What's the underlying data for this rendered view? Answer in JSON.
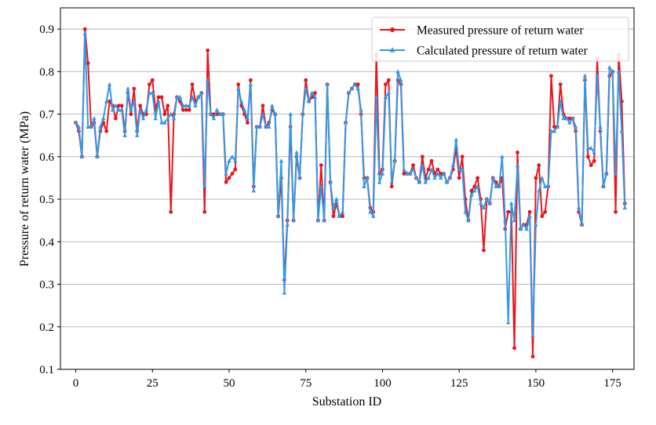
{
  "chart_data": {
    "type": "line",
    "xlabel": "Substation ID",
    "ylabel": "Pressure of return water (MPa)",
    "xlim": [
      -5,
      182
    ],
    "ylim": [
      0.1,
      0.95
    ],
    "xticks": [
      0,
      25,
      50,
      75,
      100,
      125,
      150,
      175
    ],
    "yticks": [
      0.1,
      0.2,
      0.3,
      0.4,
      0.5,
      0.6,
      0.7,
      0.8,
      0.9
    ],
    "grid": "horizontal",
    "legend_position": "top-right",
    "colors": {
      "measured": "#e8151b",
      "calculated": "#3399e6"
    },
    "series": [
      {
        "name": "Measured pressure of return water",
        "marker": "circle",
        "values": [
          0.68,
          0.66,
          0.6,
          0.9,
          0.82,
          0.67,
          0.68,
          0.6,
          0.66,
          0.68,
          0.66,
          0.73,
          0.72,
          0.69,
          0.72,
          0.72,
          0.66,
          0.75,
          0.7,
          0.76,
          0.66,
          0.72,
          0.7,
          0.7,
          0.77,
          0.78,
          0.71,
          0.74,
          0.74,
          0.7,
          0.72,
          0.47,
          0.7,
          0.74,
          0.73,
          0.71,
          0.71,
          0.71,
          0.77,
          0.73,
          0.74,
          0.75,
          0.47,
          0.85,
          0.7,
          0.7,
          0.7,
          0.7,
          0.7,
          0.54,
          0.55,
          0.56,
          0.57,
          0.77,
          0.72,
          0.7,
          0.68,
          0.78,
          0.53,
          0.67,
          0.67,
          0.72,
          0.67,
          0.68,
          0.71,
          0.7,
          0.46,
          0.55,
          0.31,
          0.45,
          0.67,
          0.45,
          0.6,
          0.55,
          0.7,
          0.78,
          0.73,
          0.74,
          0.75,
          0.45,
          0.58,
          0.45,
          0.77,
          0.54,
          0.46,
          0.49,
          0.46,
          0.46,
          0.68,
          0.75,
          0.76,
          0.77,
          0.77,
          0.7,
          0.55,
          0.55,
          0.48,
          0.47,
          0.84,
          0.56,
          0.57,
          0.77,
          0.78,
          0.53,
          0.59,
          0.78,
          0.77,
          0.56,
          0.56,
          0.56,
          0.58,
          0.55,
          0.54,
          0.6,
          0.55,
          0.57,
          0.59,
          0.56,
          0.57,
          0.56,
          0.56,
          0.54,
          0.55,
          0.57,
          0.62,
          0.55,
          0.6,
          0.5,
          0.45,
          0.52,
          0.53,
          0.55,
          0.5,
          0.38,
          0.5,
          0.49,
          0.55,
          0.54,
          0.53,
          0.55,
          0.43,
          0.47,
          0.47,
          0.15,
          0.61,
          0.43,
          0.44,
          0.44,
          0.47,
          0.13,
          0.55,
          0.58,
          0.46,
          0.47,
          0.53,
          0.79,
          0.67,
          0.67,
          0.77,
          0.7,
          0.69,
          0.69,
          0.69,
          0.66,
          0.47,
          0.44,
          0.78,
          0.6,
          0.58,
          0.59,
          0.83,
          0.66,
          0.53,
          0.56,
          0.79,
          0.8,
          0.47,
          0.84,
          0.73,
          0.49
        ]
      },
      {
        "name": "Calculated pressure of return water",
        "marker": "triangle",
        "values": [
          0.68,
          0.67,
          0.6,
          0.89,
          0.67,
          0.67,
          0.69,
          0.6,
          0.67,
          0.69,
          0.73,
          0.77,
          0.71,
          0.72,
          0.71,
          0.71,
          0.65,
          0.76,
          0.71,
          0.73,
          0.65,
          0.71,
          0.69,
          0.71,
          0.75,
          0.75,
          0.69,
          0.73,
          0.68,
          0.68,
          0.69,
          0.7,
          0.69,
          0.74,
          0.74,
          0.72,
          0.72,
          0.72,
          0.74,
          0.72,
          0.74,
          0.75,
          0.53,
          0.78,
          0.7,
          0.69,
          0.71,
          0.7,
          0.7,
          0.56,
          0.59,
          0.6,
          0.59,
          0.76,
          0.73,
          0.71,
          0.69,
          0.77,
          0.52,
          0.67,
          0.67,
          0.7,
          0.67,
          0.67,
          0.72,
          0.7,
          0.46,
          0.59,
          0.28,
          0.44,
          0.7,
          0.45,
          0.61,
          0.55,
          0.7,
          0.76,
          0.73,
          0.75,
          0.74,
          0.45,
          0.53,
          0.45,
          0.77,
          0.54,
          0.48,
          0.5,
          0.46,
          0.47,
          0.68,
          0.75,
          0.76,
          0.77,
          0.76,
          0.71,
          0.53,
          0.55,
          0.47,
          0.46,
          0.74,
          0.54,
          0.56,
          0.74,
          0.75,
          0.54,
          0.59,
          0.8,
          0.78,
          0.57,
          0.56,
          0.56,
          0.57,
          0.55,
          0.54,
          0.58,
          0.54,
          0.55,
          0.57,
          0.55,
          0.56,
          0.55,
          0.56,
          0.54,
          0.55,
          0.58,
          0.64,
          0.57,
          0.57,
          0.47,
          0.45,
          0.51,
          0.52,
          0.53,
          0.49,
          0.48,
          0.5,
          0.49,
          0.55,
          0.53,
          0.53,
          0.6,
          0.45,
          0.21,
          0.49,
          0.45,
          0.58,
          0.43,
          0.44,
          0.43,
          0.46,
          0.18,
          0.44,
          0.52,
          0.55,
          0.53,
          0.53,
          0.66,
          0.66,
          0.67,
          0.73,
          0.69,
          0.69,
          0.68,
          0.69,
          0.67,
          0.48,
          0.44,
          0.79,
          0.62,
          0.62,
          0.61,
          0.79,
          0.67,
          0.53,
          0.56,
          0.81,
          0.8,
          0.56,
          0.8,
          0.66,
          0.48
        ]
      }
    ]
  }
}
